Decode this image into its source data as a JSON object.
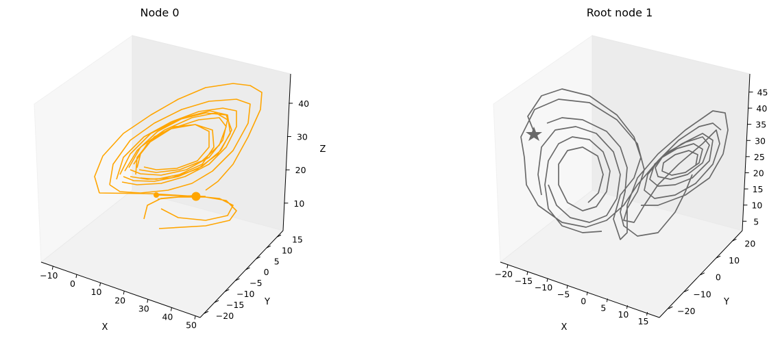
{
  "chart_data": [
    {
      "type": "line3d",
      "title": "Node 0",
      "xlabel": "X",
      "ylabel": "Y",
      "zlabel": "Z",
      "xticks": [
        -10,
        0,
        10,
        20,
        30,
        40,
        50
      ],
      "yticks": [
        -20,
        -15,
        -10,
        -5,
        0,
        5,
        10,
        15
      ],
      "zticks": [
        10,
        20,
        30,
        40
      ],
      "series": [
        {
          "color": "#ffa500",
          "marker_end": "circle",
          "description_points": "Lorenz-like trajectory in orange; range approx X -12..45, Y -18..15, Z 5..45"
        }
      ]
    },
    {
      "type": "line3d",
      "title": "Root node 1",
      "xlabel": "X",
      "ylabel": "Y",
      "zlabel": "",
      "xticks": [
        -20,
        -15,
        -10,
        -5,
        0,
        5,
        10,
        15
      ],
      "yticks": [
        -20,
        -10,
        0,
        10,
        20
      ],
      "zticks": [
        5,
        10,
        15,
        20,
        25,
        30,
        35,
        40,
        45
      ],
      "series": [
        {
          "color": "#696969",
          "marker_start": "star",
          "description_points": "Lorenz butterfly attractor in gray"
        }
      ]
    }
  ]
}
